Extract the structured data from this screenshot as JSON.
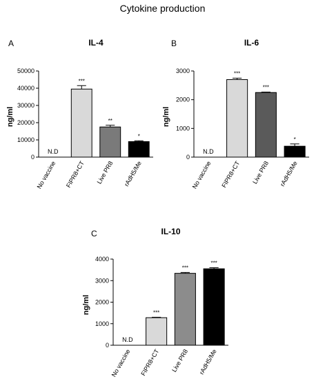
{
  "figure_title": "Cytokine production",
  "chart_data": [
    {
      "panel": "A",
      "type": "bar",
      "title": "IL-4",
      "ylabel": "ng/ml",
      "xlabel": "",
      "ylim": [
        0,
        50000
      ],
      "yticks": [
        0,
        10000,
        20000,
        30000,
        40000,
        50000
      ],
      "categories": [
        "No vaccine",
        "FIPR8+CT",
        "Live PR8",
        "rAdH5/Me"
      ],
      "values": [
        0,
        39500,
        17500,
        9000
      ],
      "errors": [
        0,
        2000,
        1000,
        500
      ],
      "annotations": [
        "N.D",
        "***",
        "**",
        "*"
      ],
      "colors": [
        "#ffffff",
        "#d9d9d9",
        "#7a7a7a",
        "#000000"
      ]
    },
    {
      "panel": "B",
      "type": "bar",
      "title": "IL-6",
      "ylabel": "ng/ml",
      "xlabel": "",
      "ylim": [
        0,
        3000
      ],
      "yticks": [
        0,
        1000,
        2000,
        3000
      ],
      "categories": [
        "No vaccine",
        "FIPR8+CT",
        "Live PR8",
        "rAdH5/Me"
      ],
      "values": [
        0,
        2700,
        2250,
        380
      ],
      "errors": [
        0,
        50,
        15,
        80
      ],
      "annotations": [
        "N.D",
        "***",
        "***",
        "*"
      ],
      "colors": [
        "#ffffff",
        "#d9d9d9",
        "#5a5a5a",
        "#000000"
      ]
    },
    {
      "panel": "C",
      "type": "bar",
      "title": "IL-10",
      "ylabel": "ng/ml",
      "xlabel": "",
      "ylim": [
        0,
        4000
      ],
      "yticks": [
        0,
        1000,
        2000,
        3000,
        4000
      ],
      "categories": [
        "No vaccine",
        "FIPR8+CT",
        "Live PR8",
        "rAdH5/Me"
      ],
      "values": [
        0,
        1280,
        3340,
        3550
      ],
      "errors": [
        0,
        20,
        40,
        50
      ],
      "annotations": [
        "N.D",
        "***",
        "***",
        "***"
      ],
      "colors": [
        "#ffffff",
        "#d9d9d9",
        "#8c8c8c",
        "#000000"
      ]
    }
  ]
}
